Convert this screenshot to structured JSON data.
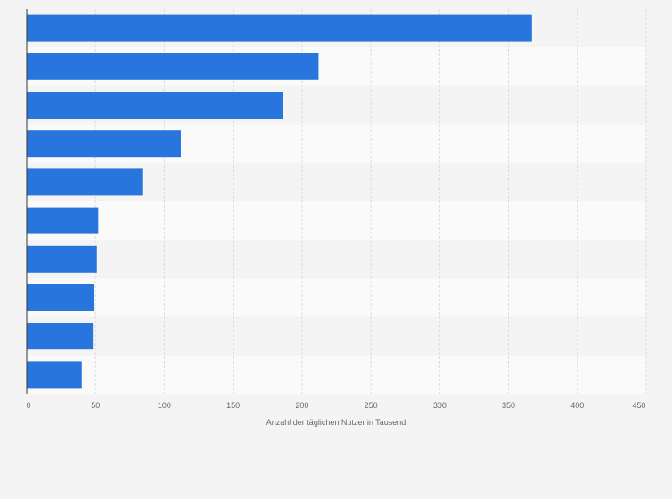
{
  "chart_data": {
    "type": "bar",
    "orientation": "horizontal",
    "categories": [
      "",
      "",
      "",
      "",
      "",
      "",
      "",
      "",
      "",
      ""
    ],
    "values": [
      367,
      212,
      186,
      112,
      84,
      52,
      51,
      49,
      48,
      40
    ],
    "xlabel": "Anzahl der täglichen Nutzer in Tausend",
    "ylabel": "",
    "xlim": [
      0,
      450
    ],
    "xticks": [
      "0",
      "50",
      "100",
      "150",
      "200",
      "250",
      "300",
      "350",
      "400",
      "450"
    ],
    "grid": "vertical dashed",
    "bar_color": "#2876dd",
    "band_colors": [
      "#f4f4f4",
      "#fafafa"
    ]
  }
}
